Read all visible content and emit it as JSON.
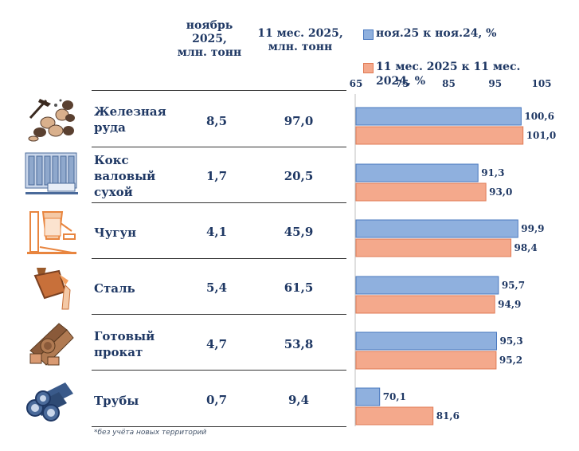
{
  "header": {
    "col_nov": "ноябрь 2025, млн. тонн",
    "col_11m": "11 мес. 2025, млн. тонн"
  },
  "legend": {
    "series1": "ноя.25 к ноя.24, %",
    "series2": "11 мес. 2025 к 11 мес. 2024, %"
  },
  "rows": [
    {
      "name": "Железная руда",
      "nov": "8,5",
      "m11": "97,0"
    },
    {
      "name": "Кокс валовый сухой",
      "nov": "1,7",
      "m11": "20,5"
    },
    {
      "name": "Чугун",
      "nov": "4,1",
      "m11": "45,9"
    },
    {
      "name": "Сталь",
      "nov": "5,4",
      "m11": "61,5"
    },
    {
      "name": "Готовый прокат",
      "nov": "4,7",
      "m11": "53,8"
    },
    {
      "name": "Трубы",
      "nov": "0,7",
      "m11": "9,4"
    }
  ],
  "footnote": "*без учёта новых территорий",
  "colors": {
    "series1_fill": "#8fb0de",
    "series1_stroke": "#4a78bf",
    "series2_fill": "#f4a98c",
    "series2_stroke": "#e07a55",
    "text": "#1f3864"
  },
  "chart_data": {
    "type": "bar",
    "orientation": "horizontal",
    "categories": [
      "Железная руда",
      "Кокс валовый сухой",
      "Чугун",
      "Сталь",
      "Готовый прокат",
      "Трубы"
    ],
    "series": [
      {
        "name": "ноя.25 к ноя.24, %",
        "values": [
          100.6,
          91.3,
          99.9,
          95.7,
          95.3,
          70.1
        ],
        "labels": [
          "100,6",
          "91,3",
          "99,9",
          "95,7",
          "95,3",
          "70,1"
        ]
      },
      {
        "name": "11 мес. 2025 к 11 мес. 2024, %",
        "values": [
          101.0,
          93.0,
          98.4,
          94.9,
          95.2,
          81.6
        ],
        "labels": [
          "101,0",
          "93,0",
          "98,4",
          "94,9",
          "95,2",
          "81,6"
        ]
      }
    ],
    "xlim": [
      65,
      105
    ],
    "ticks": [
      "65",
      "75",
      "85",
      "95",
      "105"
    ],
    "tick_values": [
      65,
      75,
      85,
      95,
      105
    ],
    "legend_position": "top"
  }
}
